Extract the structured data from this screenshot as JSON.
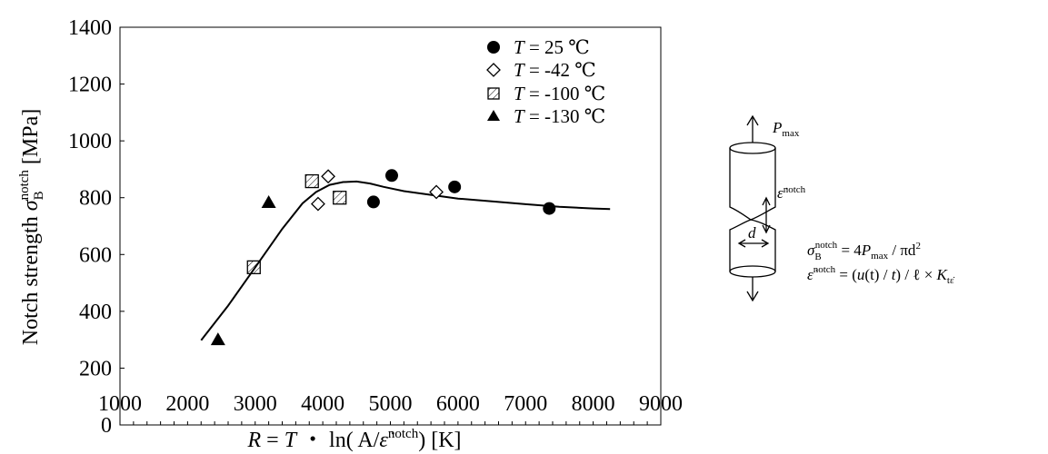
{
  "chart_data": {
    "type": "scatter",
    "xlabel": "R = T ・ ln( A/ε̇notch)   [K]",
    "ylabel": "Notch strength σBnotch [MPa]",
    "xlim": [
      1000,
      9000
    ],
    "ylim": [
      0,
      1400
    ],
    "x_ticks": [
      "1000",
      "2000",
      "3000",
      "4000",
      "5000",
      "6000",
      "7000",
      "8000",
      "9000"
    ],
    "y_ticks": [
      "0",
      "200",
      "400",
      "600",
      "800",
      "1000",
      "1200",
      "1400"
    ],
    "grid": false,
    "legend_position": "top-right",
    "series": [
      {
        "name": "T = 25 ℃",
        "marker": "filled-circle",
        "points": [
          [
            4750,
            785
          ],
          [
            5020,
            878
          ],
          [
            5950,
            838
          ],
          [
            7350,
            762
          ]
        ]
      },
      {
        "name": "T = -42 ℃",
        "marker": "open-diamond",
        "points": [
          [
            3930,
            778
          ],
          [
            4080,
            875
          ],
          [
            5680,
            820
          ]
        ]
      },
      {
        "name": "T = -100 ℃",
        "marker": "hatched-square",
        "points": [
          [
            2980,
            555
          ],
          [
            3840,
            858
          ],
          [
            4250,
            800
          ]
        ]
      },
      {
        "name": "T = -130 ℃",
        "marker": "filled-triangle",
        "points": [
          [
            2450,
            300
          ],
          [
            3200,
            783
          ]
        ]
      }
    ],
    "fit_curve": [
      [
        2200,
        298
      ],
      [
        2600,
        420
      ],
      [
        3000,
        555
      ],
      [
        3400,
        690
      ],
      [
        3700,
        780
      ],
      [
        3900,
        820
      ],
      [
        4100,
        845
      ],
      [
        4300,
        855
      ],
      [
        4500,
        857
      ],
      [
        4700,
        850
      ],
      [
        4900,
        838
      ],
      [
        5200,
        823
      ],
      [
        5600,
        810
      ],
      [
        6000,
        797
      ],
      [
        6500,
        787
      ],
      [
        7000,
        777
      ],
      [
        7500,
        768
      ],
      [
        8000,
        762
      ],
      [
        8250,
        760
      ]
    ]
  },
  "legend": {
    "t25": {
      "var": "T",
      "rest": " = 25 ℃"
    },
    "t42": {
      "var": "T",
      "rest": " = -42 ℃"
    },
    "t100": {
      "var": "T",
      "rest": " = -100 ℃"
    },
    "t130": {
      "var": "T",
      "rest": " = -130 ℃"
    }
  },
  "axes": {
    "y_title_main": "Notch strength ",
    "y_title_sym": "σ",
    "y_title_sub": "B",
    "y_title_sup": "notch",
    "y_title_unit": " [MPa]",
    "x_title_r": "R",
    "x_title_eq": " = ",
    "x_title_t": "T",
    "x_title_mid": " ・ ln( A/",
    "x_title_eps": "ε̇",
    "x_title_sup": "notch",
    "x_title_end": ")   [K]"
  },
  "schematic": {
    "pmax_p": "P",
    "pmax_sub": "max",
    "eps_label": "ε̇",
    "eps_sup": "notch",
    "d_label": "d",
    "eq1_sigma": "σ",
    "eq1_sub": "B",
    "eq1_sup": "notch",
    "eq1_rest": " = 4",
    "eq1_p": "P",
    "eq1_psub": "max",
    "eq1_tail": " / πd",
    "eq1_pow": "2",
    "eq2_eps": "ε̇",
    "eq2_sup": "notch",
    "eq2_rest": " = (",
    "eq2_u": "u",
    "eq2_mid": "(t) / ",
    "eq2_t": "t",
    "eq2_tail": ") / ℓ × ",
    "eq2_k": "K",
    "eq2_ksub": "tε̇"
  }
}
